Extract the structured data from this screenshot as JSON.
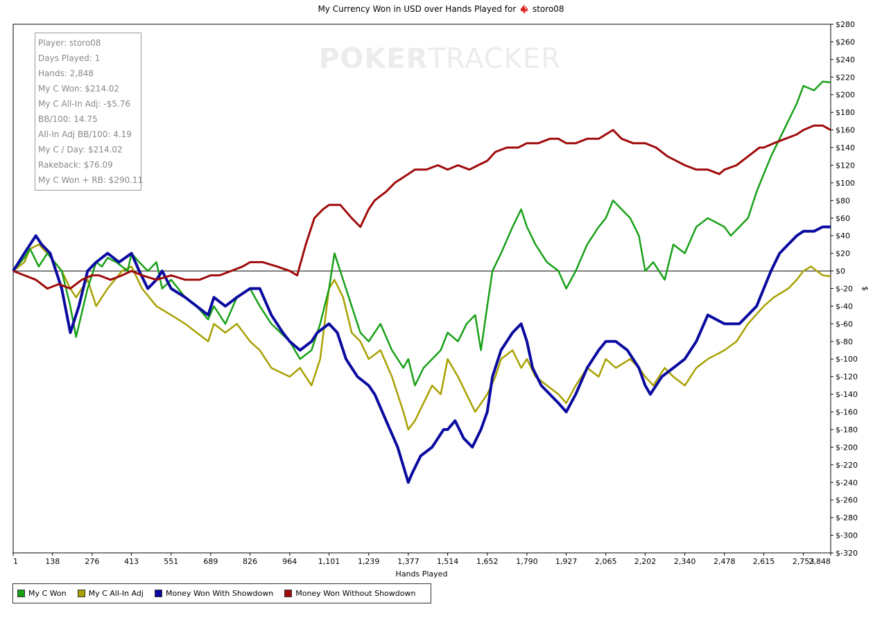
{
  "title": {
    "prefix": "My Currency Won in USD over Hands Played for",
    "player": "storo08"
  },
  "watermark": {
    "bold": "POKER",
    "light": "TRACKER"
  },
  "stats": [
    "Player: storo08",
    "Days Played: 1",
    "Hands: 2,848",
    "My C Won: $214.02",
    "My C All-In Adj: -$5.76",
    "BB/100: 14.75",
    "All-In Adj BB/100: 4.19",
    "My C / Day: $214.02",
    "Rakeback: $76.09",
    "My C Won + RB: $290.11"
  ],
  "chart_data": {
    "type": "line",
    "title": "My Currency Won in USD over Hands Played for storo08",
    "xlabel": "Hands Played",
    "ylabel": "$",
    "xlim": [
      1,
      2848
    ],
    "ylim": [
      -320,
      280
    ],
    "x_ticks": [
      1,
      138,
      276,
      413,
      551,
      689,
      826,
      964,
      1101,
      1239,
      1377,
      1514,
      1652,
      1790,
      1927,
      2065,
      2202,
      2340,
      2478,
      2615,
      2753,
      2848
    ],
    "x_tick_labels": [
      "1",
      "138",
      "276",
      "413",
      "551",
      "689",
      "826",
      "964",
      "1,101",
      "1,239",
      "1,377",
      "1,514",
      "1,652",
      "1,790",
      "1,927",
      "2,065",
      "2,202",
      "2,340",
      "2,478",
      "2,615",
      "2,753",
      "2,848"
    ],
    "y_ticks": [
      280,
      260,
      240,
      220,
      200,
      180,
      160,
      140,
      120,
      100,
      80,
      60,
      40,
      20,
      0,
      -20,
      -40,
      -60,
      -80,
      -100,
      -120,
      -140,
      -160,
      -180,
      -200,
      -220,
      -240,
      -260,
      -280,
      -300,
      -320
    ],
    "y_tick_labels": [
      "$280",
      "$260",
      "$240",
      "$220",
      "$200",
      "$180",
      "$160",
      "$140",
      "$120",
      "$100",
      "$80",
      "$60",
      "$40",
      "$20",
      "$0",
      "$-20",
      "$-40",
      "$-60",
      "$-80",
      "$-100",
      "$-120",
      "$-140",
      "$-160",
      "$-180",
      "$-200",
      "$-220",
      "$-240",
      "$-260",
      "$-280",
      "$-300",
      "$-320"
    ],
    "legend_position": "bottom-left",
    "series": [
      {
        "name": "My C Won",
        "color": "#16a016",
        "x": [
          1,
          40,
          60,
          90,
          120,
          170,
          200,
          220,
          260,
          290,
          310,
          330,
          360,
          400,
          413,
          440,
          470,
          500,
          520,
          551,
          600,
          640,
          680,
          700,
          740,
          780,
          826,
          860,
          900,
          964,
          1000,
          1040,
          1070,
          1101,
          1120,
          1150,
          1180,
          1210,
          1239,
          1280,
          1320,
          1360,
          1377,
          1400,
          1430,
          1460,
          1490,
          1514,
          1550,
          1580,
          1610,
          1630,
          1652,
          1670,
          1700,
          1740,
          1770,
          1790,
          1820,
          1860,
          1900,
          1927,
          1960,
          2000,
          2040,
          2065,
          2090,
          2120,
          2150,
          2180,
          2202,
          2230,
          2270,
          2300,
          2340,
          2380,
          2420,
          2478,
          2500,
          2530,
          2560,
          2590,
          2615,
          2640,
          2670,
          2700,
          2730,
          2753,
          2790,
          2820,
          2848
        ],
        "y": [
          0,
          15,
          25,
          5,
          20,
          0,
          -40,
          -75,
          -20,
          10,
          5,
          15,
          10,
          0,
          20,
          10,
          0,
          10,
          -20,
          -10,
          -30,
          -40,
          -55,
          -40,
          -60,
          -30,
          -20,
          -40,
          -60,
          -80,
          -100,
          -90,
          -60,
          -20,
          20,
          -10,
          -40,
          -70,
          -80,
          -60,
          -90,
          -110,
          -100,
          -130,
          -110,
          -100,
          -90,
          -70,
          -80,
          -60,
          -50,
          -90,
          -40,
          0,
          20,
          50,
          70,
          50,
          30,
          10,
          0,
          -20,
          0,
          30,
          50,
          60,
          80,
          70,
          60,
          40,
          0,
          10,
          -10,
          30,
          20,
          50,
          60,
          50,
          40,
          50,
          60,
          90,
          110,
          130,
          150,
          170,
          190,
          210,
          205,
          215,
          214
        ]
      },
      {
        "name": "My C All-In Adj",
        "color": "#a8a000",
        "x": [
          1,
          40,
          60,
          90,
          120,
          170,
          200,
          220,
          260,
          290,
          330,
          380,
          413,
          450,
          500,
          551,
          600,
          640,
          680,
          700,
          740,
          780,
          826,
          860,
          900,
          964,
          1000,
          1040,
          1070,
          1101,
          1120,
          1150,
          1180,
          1210,
          1239,
          1280,
          1320,
          1360,
          1377,
          1400,
          1430,
          1460,
          1490,
          1514,
          1550,
          1580,
          1610,
          1652,
          1680,
          1700,
          1740,
          1770,
          1790,
          1820,
          1860,
          1900,
          1927,
          1960,
          2000,
          2040,
          2065,
          2100,
          2150,
          2180,
          2202,
          2230,
          2270,
          2300,
          2340,
          2380,
          2420,
          2478,
          2520,
          2560,
          2615,
          2650,
          2700,
          2730,
          2753,
          2780,
          2800,
          2820,
          2848
        ],
        "y": [
          0,
          10,
          25,
          30,
          20,
          0,
          -20,
          -30,
          -10,
          -40,
          -20,
          0,
          5,
          -20,
          -40,
          -50,
          -60,
          -70,
          -80,
          -60,
          -70,
          -60,
          -80,
          -90,
          -110,
          -120,
          -110,
          -130,
          -100,
          -20,
          -10,
          -30,
          -70,
          -80,
          -100,
          -90,
          -120,
          -160,
          -180,
          -170,
          -150,
          -130,
          -140,
          -100,
          -120,
          -140,
          -160,
          -140,
          -120,
          -100,
          -90,
          -110,
          -100,
          -120,
          -130,
          -140,
          -150,
          -130,
          -110,
          -120,
          -100,
          -110,
          -100,
          -110,
          -120,
          -130,
          -110,
          -120,
          -130,
          -110,
          -100,
          -90,
          -80,
          -60,
          -40,
          -30,
          -20,
          -10,
          0,
          5,
          0,
          -5,
          -6
        ]
      },
      {
        "name": "Money Won With Showdown",
        "color": "#0a0aa0",
        "x": [
          1,
          40,
          60,
          80,
          100,
          130,
          170,
          200,
          230,
          260,
          290,
          330,
          370,
          413,
          440,
          470,
          500,
          520,
          551,
          600,
          640,
          680,
          700,
          740,
          780,
          826,
          860,
          900,
          940,
          964,
          1000,
          1040,
          1060,
          1101,
          1130,
          1160,
          1200,
          1239,
          1260,
          1300,
          1340,
          1377,
          1390,
          1420,
          1460,
          1500,
          1514,
          1540,
          1570,
          1600,
          1630,
          1652,
          1670,
          1700,
          1740,
          1770,
          1790,
          1810,
          1840,
          1870,
          1900,
          1927,
          1960,
          2000,
          2040,
          2065,
          2100,
          2140,
          2180,
          2202,
          2220,
          2260,
          2300,
          2340,
          2380,
          2420,
          2478,
          2500,
          2530,
          2560,
          2590,
          2615,
          2640,
          2670,
          2700,
          2730,
          2753,
          2790,
          2820,
          2848
        ],
        "y": [
          0,
          20,
          30,
          40,
          30,
          20,
          -20,
          -70,
          -40,
          0,
          10,
          20,
          10,
          20,
          0,
          -20,
          -10,
          0,
          -20,
          -30,
          -40,
          -50,
          -30,
          -40,
          -30,
          -20,
          -20,
          -50,
          -70,
          -80,
          -90,
          -80,
          -70,
          -60,
          -70,
          -100,
          -120,
          -130,
          -140,
          -170,
          -200,
          -240,
          -230,
          -210,
          -200,
          -180,
          -180,
          -170,
          -190,
          -200,
          -180,
          -160,
          -120,
          -90,
          -70,
          -60,
          -80,
          -110,
          -130,
          -140,
          -150,
          -160,
          -140,
          -110,
          -90,
          -80,
          -80,
          -90,
          -110,
          -130,
          -140,
          -120,
          -110,
          -100,
          -80,
          -50,
          -60,
          -60,
          -60,
          -50,
          -40,
          -20,
          0,
          20,
          30,
          40,
          45,
          45,
          50,
          50
        ]
      },
      {
        "name": "Money Won Without Showdown",
        "color": "#a00a0a",
        "x": [
          1,
          40,
          80,
          120,
          160,
          200,
          240,
          276,
          300,
          340,
          380,
          413,
          450,
          500,
          551,
          600,
          650,
          689,
          720,
          760,
          800,
          826,
          870,
          920,
          964,
          990,
          1020,
          1050,
          1080,
          1101,
          1140,
          1180,
          1210,
          1239,
          1260,
          1300,
          1330,
          1377,
          1400,
          1440,
          1480,
          1514,
          1550,
          1590,
          1620,
          1652,
          1680,
          1720,
          1760,
          1790,
          1830,
          1870,
          1900,
          1927,
          1960,
          2000,
          2040,
          2065,
          2090,
          2120,
          2160,
          2202,
          2240,
          2280,
          2310,
          2340,
          2380,
          2420,
          2460,
          2478,
          2520,
          2560,
          2600,
          2615,
          2650,
          2690,
          2730,
          2753,
          2790,
          2820,
          2848
        ],
        "y": [
          0,
          -5,
          -10,
          -20,
          -15,
          -20,
          -10,
          -5,
          -5,
          -10,
          -5,
          0,
          -5,
          -10,
          -5,
          -10,
          -10,
          -5,
          -5,
          0,
          5,
          10,
          10,
          5,
          0,
          -5,
          30,
          60,
          70,
          75,
          75,
          60,
          50,
          70,
          80,
          90,
          100,
          110,
          115,
          115,
          120,
          115,
          120,
          115,
          120,
          125,
          135,
          140,
          140,
          145,
          145,
          150,
          150,
          145,
          145,
          150,
          150,
          155,
          160,
          150,
          145,
          145,
          140,
          130,
          125,
          120,
          115,
          115,
          110,
          115,
          120,
          130,
          140,
          140,
          145,
          150,
          155,
          160,
          165,
          165,
          160
        ]
      }
    ]
  }
}
